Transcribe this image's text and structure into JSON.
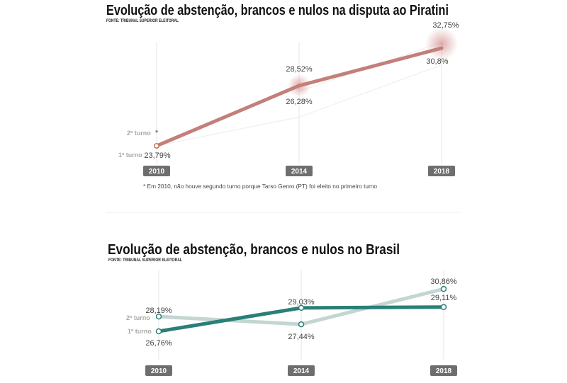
{
  "chart_data": [
    {
      "type": "line",
      "title": "Evolução de abstenção, brancos e nulos na disputa ao Piratini",
      "source": "FONTE: TRIBUNAL SUPERIOR ELEITORAL",
      "categories": [
        "2010",
        "2014",
        "2018"
      ],
      "series": [
        {
          "name": "1º turno",
          "values": [
            23.79,
            26.28,
            30.8
          ],
          "labels": [
            "23,79%",
            "26,28%",
            "30,8%"
          ]
        },
        {
          "name": "2º turno",
          "values": [
            null,
            28.52,
            32.75
          ],
          "labels": [
            "*",
            "28,52%",
            "32,75%"
          ]
        }
      ],
      "highlight_color": "#c47f7a",
      "note": "* Em 2010, não houve segundo turno porque Tarso Genro (PT) foi eleito no primeiro turno",
      "grid": "vertical lines at each year"
    },
    {
      "type": "line",
      "title": "Evolução de abstenção, brancos e nulos no Brasil",
      "source": "FONTE: TRIBUNAL SUPERIOR ELEITORAL",
      "categories": [
        "2010",
        "2014",
        "2018"
      ],
      "series": [
        {
          "name": "1º turno",
          "values": [
            26.76,
            29.03,
            29.11
          ],
          "labels": [
            "26,76%",
            "29,03%",
            "29,11%"
          ],
          "color": "#2a7f78"
        },
        {
          "name": "2º turno",
          "values": [
            28.19,
            27.44,
            30.86
          ],
          "labels": [
            "28,19%",
            "27,44%",
            "30,86%"
          ],
          "color": "#c2d6d2"
        }
      ],
      "grid": "vertical lines at each year"
    }
  ]
}
